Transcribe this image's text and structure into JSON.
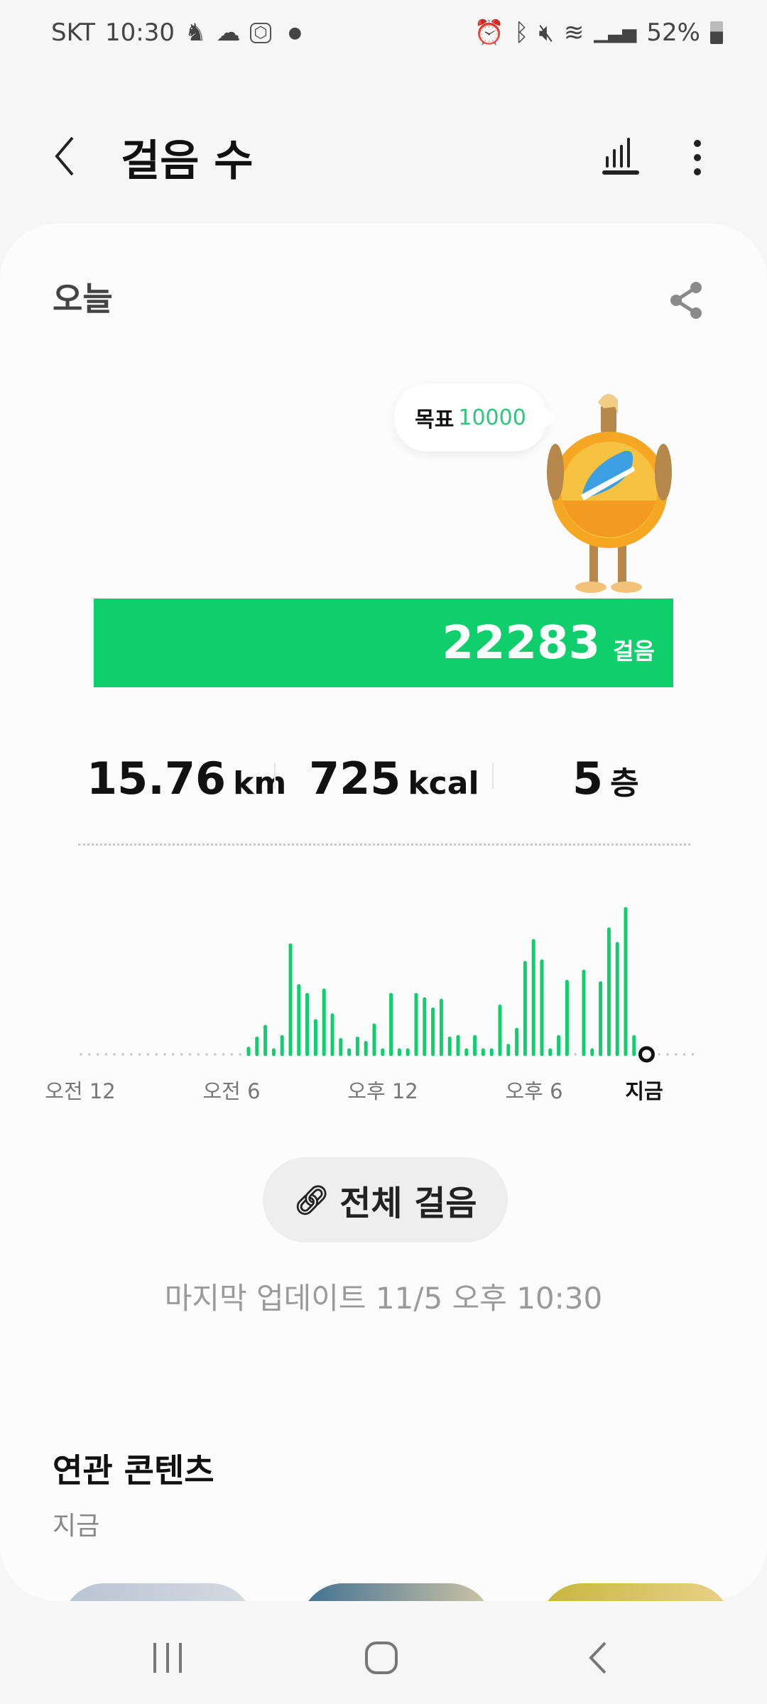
{
  "status_bar": {
    "carrier": "SKT",
    "time": "10:30",
    "battery": "52%",
    "left_icons": [
      "person-icon",
      "cloud-icon",
      "dashin-badge-icon",
      "dot-icon"
    ],
    "right_icons": [
      "alarm-icon",
      "bluetooth-icon",
      "mute-icon",
      "wifi-icon",
      "signal-icon",
      "battery-icon"
    ]
  },
  "header": {
    "title": "걸음 수",
    "back_icon": "chevron-left-icon",
    "chart_icon": "bar-chart-icon",
    "more_icon": "more-vertical-icon"
  },
  "today": {
    "label": "오늘",
    "share_icon": "share-icon"
  },
  "goal": {
    "label": "목표",
    "value": "10000"
  },
  "steps": {
    "value": "22283",
    "unit": "걸음",
    "goal_progress_percent": 100
  },
  "stats": [
    {
      "value": "15.76",
      "unit": "km"
    },
    {
      "value": "725",
      "unit": "kcal"
    },
    {
      "value": "5",
      "unit": "층"
    }
  ],
  "colors": {
    "accent": "#0ecf6c",
    "goal_text": "#2fc57a",
    "background": "#f6f6f6",
    "card": "#fcfcfc"
  },
  "chart_data": {
    "type": "bar",
    "interval_minutes": 20,
    "first_bar_time": "06:40",
    "values_relative_percent": [
      4,
      11,
      19,
      2,
      12,
      75,
      47,
      41,
      23,
      44,
      27,
      10,
      2,
      11,
      8,
      20,
      2,
      41,
      2,
      2,
      41,
      38,
      31,
      37,
      11,
      12,
      2,
      12,
      2,
      2,
      33,
      6,
      17,
      63,
      78,
      64,
      2,
      12,
      50,
      0,
      57,
      2,
      49,
      86,
      76,
      100,
      12
    ],
    "x_tick_labels": [
      "오전 12",
      "오전 6",
      "오후 12",
      "오후 6"
    ],
    "now_label": "지금",
    "now_time": "22:30",
    "grid": false
  },
  "all_steps_button": {
    "label": "전체 걸음",
    "icon": "link-icon"
  },
  "last_update": "마지막 업데이트 11/5 오후 10:30",
  "related": {
    "title": "연관 콘텐츠",
    "subtitle": "지금"
  },
  "nav": {
    "recents": "recents-icon",
    "home": "home-icon",
    "back": "back-icon"
  }
}
